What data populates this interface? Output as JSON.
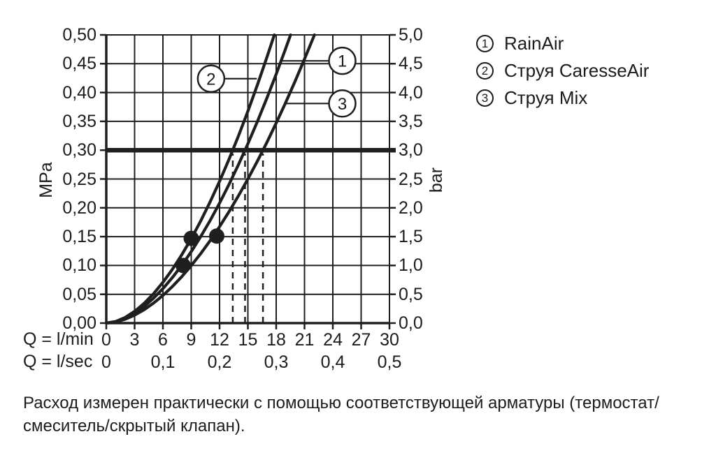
{
  "legend": {
    "items": [
      {
        "num": "1",
        "label": "RainAir"
      },
      {
        "num": "2",
        "label": "Струя CaresseAir"
      },
      {
        "num": "3",
        "label": "Струя Mix"
      }
    ]
  },
  "caption": {
    "line1": "Расход измерен практически с помощью соответствующей арматуры (термостат/",
    "line2": "смеситель/скрытый клапан)."
  },
  "chart_data": {
    "type": "line",
    "title": "",
    "xlabel_primary": "Q = l/min",
    "xlabel_secondary": "Q = l/sec",
    "ylabel_left": "MPa",
    "ylabel_right": "bar",
    "x_range_lmin": [
      0,
      30
    ],
    "y_range_mpa": [
      0,
      0.5
    ],
    "grid": true,
    "line_color": "#1f1f1f",
    "x_ticks_lmin": {
      "values": [
        0,
        3,
        6,
        9,
        12,
        15,
        18,
        21,
        24,
        27,
        30
      ],
      "labels": [
        "0",
        "3",
        "6",
        "9",
        "12",
        "15",
        "18",
        "21",
        "24",
        "27",
        "30"
      ]
    },
    "x_ticks_lsec": {
      "values": [
        0,
        6,
        12,
        18,
        24,
        30
      ],
      "labels": [
        "0",
        "0,1",
        "0,2",
        "0,3",
        "0,4",
        "0,5"
      ]
    },
    "y_ticks_mpa": {
      "values": [
        0,
        0.05,
        0.1,
        0.15,
        0.2,
        0.25,
        0.3,
        0.35,
        0.4,
        0.45,
        0.5
      ],
      "labels": [
        "0,00",
        "0,05",
        "0,10",
        "0,15",
        "0,20",
        "0,25",
        "0,30",
        "0,35",
        "0,40",
        "0,45",
        "0,50"
      ]
    },
    "y_ticks_bar": {
      "values": [
        0,
        0.05,
        0.1,
        0.15,
        0.2,
        0.25,
        0.3,
        0.35,
        0.4,
        0.45,
        0.5
      ],
      "labels": [
        "0,0",
        "0,5",
        "1,0",
        "1,5",
        "2,0",
        "2,5",
        "3,0",
        "3,5",
        "4,0",
        "4,5",
        "5,0"
      ]
    },
    "reference_line_mpa": 0.3,
    "dashed_lines_lmin": [
      13.4,
      14.7,
      16.6
    ],
    "series": [
      {
        "name": "RainAir",
        "number": "1",
        "flow_at_03mpa_lmin": 14.7,
        "points": [
          [
            0,
            0
          ],
          [
            1,
            0.0024
          ],
          [
            2,
            0.0083
          ],
          [
            3,
            0.0172
          ],
          [
            4,
            0.0288
          ],
          [
            5,
            0.0431
          ],
          [
            6,
            0.0598
          ],
          [
            7,
            0.0789
          ],
          [
            8,
            0.1003
          ],
          [
            9,
            0.124
          ],
          [
            10,
            0.15
          ],
          [
            11,
            0.178
          ],
          [
            12,
            0.2081
          ],
          [
            13,
            0.2405
          ],
          [
            14,
            0.2748
          ],
          [
            15,
            0.3111
          ],
          [
            16,
            0.3494
          ],
          [
            17,
            0.3897
          ],
          [
            18,
            0.4319
          ],
          [
            19,
            0.4761
          ],
          [
            19.52,
            0.5
          ]
        ]
      },
      {
        "name": "Струя CaresseAir",
        "number": "2",
        "flow_at_03mpa_lmin": 13.4,
        "points": [
          [
            0,
            0
          ],
          [
            1,
            0.0028
          ],
          [
            2,
            0.0098
          ],
          [
            3,
            0.0203
          ],
          [
            4,
            0.034
          ],
          [
            5,
            0.0509
          ],
          [
            6,
            0.0707
          ],
          [
            7,
            0.0932
          ],
          [
            8,
            0.1186
          ],
          [
            9,
            0.1465
          ],
          [
            10,
            0.1771
          ],
          [
            11,
            0.2103
          ],
          [
            12,
            0.2459
          ],
          [
            13,
            0.2841
          ],
          [
            14,
            0.3246
          ],
          [
            15,
            0.3675
          ],
          [
            16,
            0.4128
          ],
          [
            17,
            0.4604
          ],
          [
            17.8,
            0.5
          ]
        ]
      },
      {
        "name": "Струя Mix",
        "number": "3",
        "flow_at_03mpa_lmin": 16.6,
        "points": [
          [
            0,
            0
          ],
          [
            1,
            0.0019
          ],
          [
            2,
            0.0066
          ],
          [
            3,
            0.0138
          ],
          [
            4,
            0.0231
          ],
          [
            5,
            0.0346
          ],
          [
            6,
            0.048
          ],
          [
            7,
            0.0634
          ],
          [
            8,
            0.0806
          ],
          [
            9,
            0.0997
          ],
          [
            10,
            0.1205
          ],
          [
            11,
            0.143
          ],
          [
            12,
            0.1673
          ],
          [
            13,
            0.1932
          ],
          [
            14,
            0.2208
          ],
          [
            15,
            0.25
          ],
          [
            16,
            0.2808
          ],
          [
            17,
            0.3131
          ],
          [
            18,
            0.3471
          ],
          [
            19,
            0.3825
          ],
          [
            20,
            0.4195
          ],
          [
            21,
            0.4581
          ],
          [
            22.05,
            0.5
          ]
        ]
      }
    ],
    "markers": [
      [
        9.0,
        0.147
      ],
      [
        11.7,
        0.151
      ],
      [
        8.15,
        0.1
      ]
    ],
    "callouts": [
      {
        "label": "1",
        "circle": [
          25.0,
          0.455
        ],
        "to": [
          18.6,
          0.455
        ]
      },
      {
        "label": "2",
        "circle": [
          11.1,
          0.424
        ],
        "to": [
          15.95,
          0.424
        ]
      },
      {
        "label": "3",
        "circle": [
          25.0,
          0.381
        ],
        "to": [
          19.1,
          0.381
        ]
      }
    ]
  }
}
